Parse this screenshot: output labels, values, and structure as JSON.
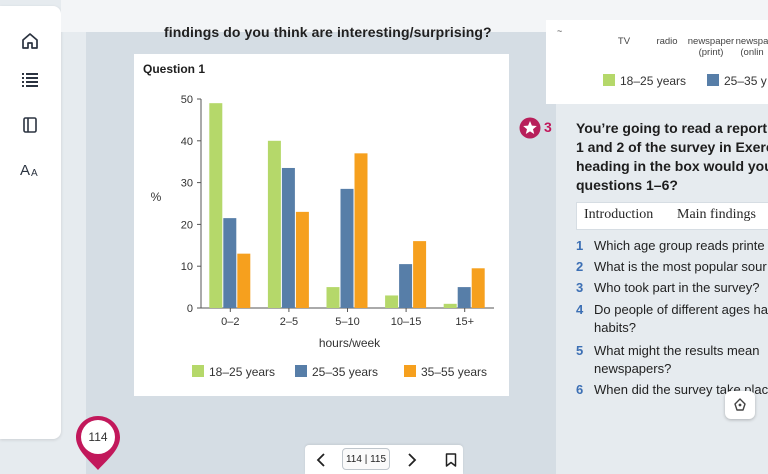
{
  "sidebar": {
    "items": [
      {
        "icon": "home-icon"
      },
      {
        "icon": "list-icon"
      },
      {
        "icon": "book-icon"
      },
      {
        "icon": "font-size-icon"
      }
    ]
  },
  "main": {
    "heading_fragment": "findings do you think are interesting/surprising?"
  },
  "chart_data": {
    "type": "bar",
    "title": "Question 1",
    "xlabel": "hours/week",
    "ylabel": "%",
    "categories": [
      "0–2",
      "2–5",
      "5–10",
      "10–15",
      "15+"
    ],
    "ylim": [
      0,
      50
    ],
    "yticks": [
      0,
      10,
      20,
      30,
      40,
      50
    ],
    "series": [
      {
        "name": "18–25 years",
        "color": "#b5d86a",
        "values": [
          49,
          40,
          5,
          3,
          1
        ]
      },
      {
        "name": "25–35 years",
        "color": "#577ea8",
        "values": [
          21.5,
          33.5,
          28.5,
          10.5,
          5
        ]
      },
      {
        "name": "35–55 years",
        "color": "#f6a01e",
        "values": [
          13,
          23,
          37,
          16,
          9.5
        ]
      }
    ],
    "legend_position": "bottom",
    "grid": false
  },
  "right_chart": {
    "cutoff_label": "~",
    "categories": [
      "TV",
      "radio",
      "newspaper\n(print)",
      "newspa\n(onlin"
    ],
    "legend": [
      {
        "name": "18–25 years",
        "color": "#b5d86a"
      },
      {
        "name": "25–35 y",
        "color": "#577ea8"
      }
    ]
  },
  "exercise": {
    "number": "3",
    "lines": [
      "You’re going to read a report b",
      "1 and 2 of the survey in Exerci",
      "heading in the box would you",
      "questions 1–6?"
    ],
    "box_items": [
      "Introduction",
      "Main findings"
    ],
    "questions": [
      {
        "n": "1",
        "lines": [
          "Which age group reads printe"
        ]
      },
      {
        "n": "2",
        "lines": [
          "What is the most popular sour"
        ]
      },
      {
        "n": "3",
        "lines": [
          "Who took part in the survey?"
        ]
      },
      {
        "n": "4",
        "lines": [
          "Do people of different ages ha",
          "habits?"
        ]
      },
      {
        "n": "5",
        "lines": [
          "What might the results mean",
          "newspapers?"
        ]
      },
      {
        "n": "6",
        "lines": [
          "When did the survey take plac"
        ]
      }
    ]
  },
  "page_marker": {
    "label": "114"
  },
  "pager": {
    "indicator": "114 | 115"
  }
}
